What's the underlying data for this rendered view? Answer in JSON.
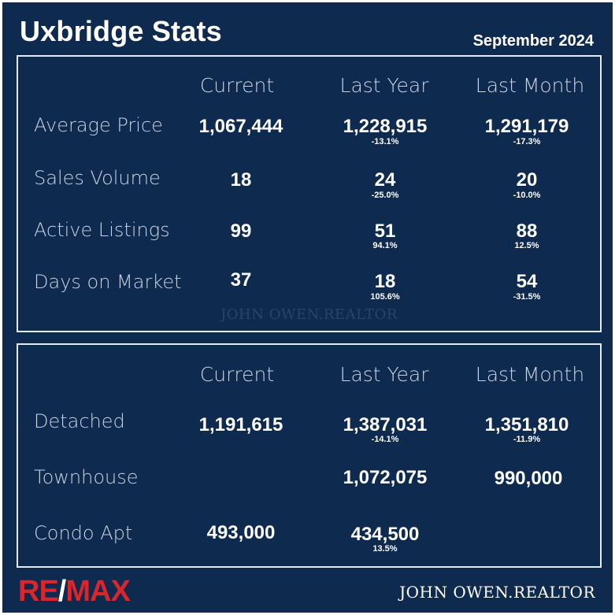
{
  "header": {
    "title": "Uxbridge Stats",
    "date": "September 2024"
  },
  "columns": [
    "Current",
    "Last Year",
    "Last Month"
  ],
  "overview": {
    "rows": [
      {
        "label": "Average Price",
        "current": "1,067,444",
        "last_year": "1,228,915",
        "last_year_change": "-13.1%",
        "last_month": "1,291,179",
        "last_month_change": "-17.3%"
      },
      {
        "label": "Sales Volume",
        "current": "18",
        "last_year": "24",
        "last_year_change": "-25.0%",
        "last_month": "20",
        "last_month_change": "-10.0%"
      },
      {
        "label": "Active Listings",
        "current": "99",
        "last_year": "51",
        "last_year_change": "94.1%",
        "last_month": "88",
        "last_month_change": "12.5%"
      },
      {
        "label": "Days on Market",
        "current": "37",
        "last_year": "18",
        "last_year_change": "105.6%",
        "last_month": "54",
        "last_month_change": "-31.5%"
      }
    ],
    "watermark": "JOHN OWEN.REALTOR"
  },
  "by_type": {
    "rows": [
      {
        "label": "Detached",
        "current": "1,191,615",
        "last_year": "1,387,031",
        "last_year_change": "-14.1%",
        "last_month": "1,351,810",
        "last_month_change": "-11.9%"
      },
      {
        "label": "Townhouse",
        "current": "",
        "last_year": "1,072,075",
        "last_year_change": "",
        "last_month": "990,000",
        "last_month_change": ""
      },
      {
        "label": "Condo Apt",
        "current": "493,000",
        "last_year": "434,500",
        "last_year_change": "13.5%",
        "last_month": "",
        "last_month_change": ""
      }
    ]
  },
  "footer": {
    "logo": {
      "re": "RE",
      "slash": "/",
      "max": "MAX"
    },
    "signature": "JOHN OWEN.REALTOR"
  },
  "colors": {
    "background": "#0f2a4f",
    "text": "#ffffff",
    "muted_text": "#c9d3e2",
    "brand_red": "#d7262e"
  }
}
